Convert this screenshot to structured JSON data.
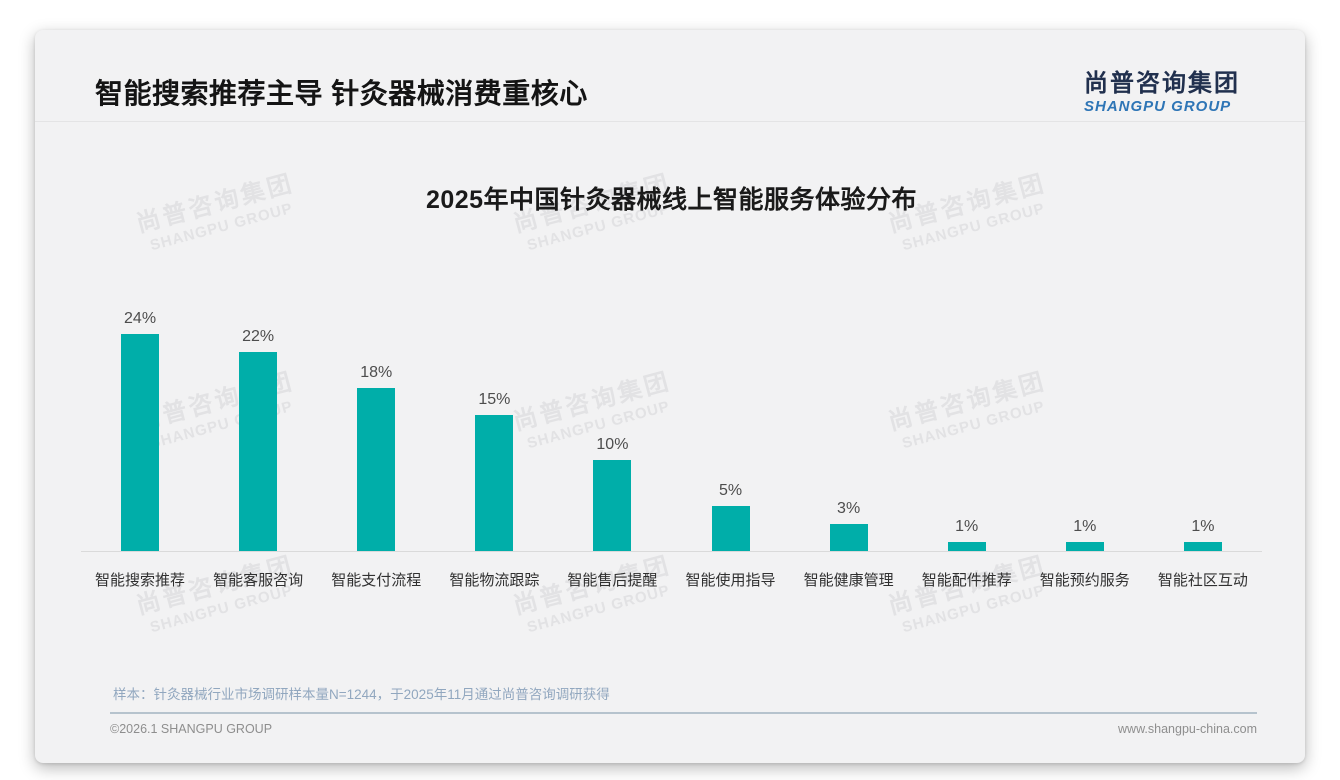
{
  "slide": {
    "header": {
      "title": "智能搜索推荐主导 针灸器械消费重核心"
    },
    "logo": {
      "cn": "尚普咨询集团",
      "en": "SHANGPU GROUP"
    },
    "watermark": {
      "line1": "尚普咨询集团",
      "line2": "SHANGPU GROUP"
    },
    "footnote": "样本：针灸器械行业市场调研样本量N=1244，于2025年11月通过尚普咨询调研获得",
    "footer": {
      "left": "©2026.1 SHANGPU GROUP",
      "right": "www.shangpu-china.com"
    }
  },
  "chart_data": {
    "type": "bar",
    "title": "2025年中国针灸器械线上智能服务体验分布",
    "categories": [
      "智能搜索推荐",
      "智能客服咨询",
      "智能支付流程",
      "智能物流跟踪",
      "智能售后提醒",
      "智能使用指导",
      "智能健康管理",
      "智能配件推荐",
      "智能预约服务",
      "智能社区互动"
    ],
    "values": [
      24,
      22,
      18,
      15,
      10,
      5,
      3,
      1,
      1,
      1
    ],
    "data_labels": [
      "24%",
      "22%",
      "18%",
      "15%",
      "10%",
      "5%",
      "3%",
      "1%",
      "1%",
      "1%"
    ],
    "unit": "%",
    "bar_color": "#00AEA9",
    "axis_line_color": "#dadada",
    "ylim": [
      0,
      26
    ],
    "grid": false,
    "legend_position": "none",
    "value_labels_position": "above-bars"
  }
}
